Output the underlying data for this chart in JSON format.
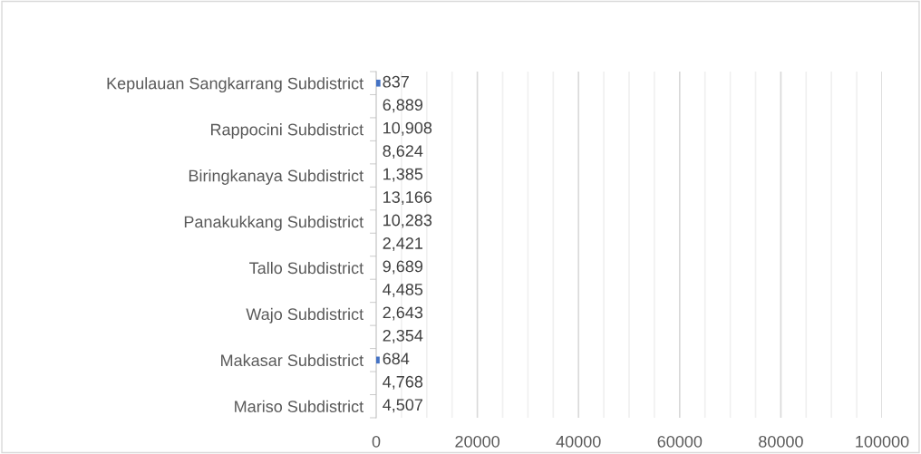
{
  "chart_data": {
    "type": "bar",
    "orientation": "horizontal",
    "categories": [
      "Kepulauan Sangkarrang Subdistrict",
      null,
      "Rappocini Subdistrict",
      null,
      "Biringkanaya Subdistrict",
      null,
      "Panakukkang Subdistrict",
      null,
      "Tallo Subdistrict",
      null,
      "Wajo Subdistrict",
      null,
      "Makasar Subdistrict",
      null,
      "Mariso Subdistrict"
    ],
    "values": [
      837,
      null,
      null,
      null,
      null,
      null,
      null,
      null,
      null,
      null,
      null,
      null,
      684,
      null,
      null
    ],
    "color": "#4472c4",
    "value_labels": [
      "837",
      "6,889",
      "10,908",
      "8,624",
      "1,385",
      "13,166",
      "10,283",
      "2,421",
      "9,689",
      "4,485",
      "2,643",
      "2,354",
      "684",
      "4,768",
      "4,507"
    ],
    "xlim": [
      0,
      100000
    ],
    "xticks": [
      0,
      {
        "value": 5000,
        "label": null
      },
      {
        "value": 10000,
        "label": null
      },
      {
        "value": 15000,
        "label": null
      },
      20000,
      {
        "value": 25000,
        "label": null
      },
      {
        "value": 30000,
        "label": null
      },
      {
        "value": 35000,
        "label": null
      },
      40000,
      {
        "value": 45000,
        "label": null
      },
      {
        "value": 50000,
        "label": null
      },
      {
        "value": 55000,
        "label": null
      },
      60000,
      {
        "value": 65000,
        "label": null
      },
      {
        "value": 70000,
        "label": null
      },
      {
        "value": 75000,
        "label": null
      },
      80000,
      {
        "value": 85000,
        "label": null
      },
      {
        "value": 90000,
        "label": null
      },
      {
        "value": 95000,
        "label": null
      },
      100000
    ],
    "grid": "x"
  }
}
